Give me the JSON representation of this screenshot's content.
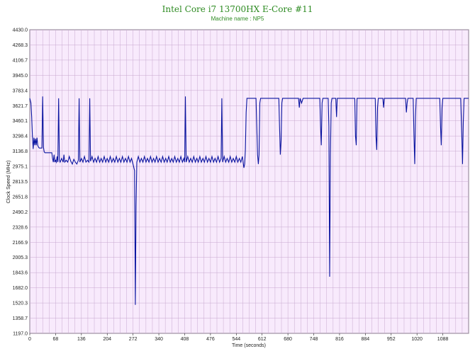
{
  "chart_data": {
    "type": "line",
    "title": "Intel Core i7 13700HX E-Core #11",
    "subtitle": "Machine name : NP5",
    "xlabel": "Time (seconds)",
    "ylabel": "Clock Speed (MHz)",
    "xlim": [
      0,
      1156
    ],
    "ylim": [
      1197.0,
      4430.0
    ],
    "x_ticks": [
      0,
      68,
      136,
      204,
      272,
      340,
      408,
      476,
      544,
      612,
      680,
      748,
      816,
      884,
      952,
      1020,
      1088
    ],
    "y_ticks": [
      "1197.0",
      "1358.7",
      "1520.3",
      "1682.0",
      "1843.6",
      "2005.3",
      "2166.9",
      "2328.6",
      "2490.2",
      "2651.8",
      "2813.5",
      "2975.1",
      "3136.8",
      "3298.4",
      "3460.1",
      "3621.7",
      "3783.4",
      "3945.0",
      "4106.7",
      "4268.3",
      "4430.0"
    ],
    "grid": true,
    "colors": {
      "line": "#0a14a0",
      "plot_bg": "#f8eafc",
      "grid": "#c7a8cf",
      "title": "#2e8b22"
    },
    "series": [
      {
        "values": [
          [
            0,
            3700
          ],
          [
            3,
            3650
          ],
          [
            5,
            3500
          ],
          [
            7,
            3300
          ],
          [
            9,
            3160
          ],
          [
            11,
            3280
          ],
          [
            13,
            3200
          ],
          [
            15,
            3270
          ],
          [
            17,
            3200
          ],
          [
            19,
            3280
          ],
          [
            21,
            3200
          ],
          [
            23,
            3180
          ],
          [
            25,
            3170
          ],
          [
            27,
            3170
          ],
          [
            30,
            3170
          ],
          [
            32,
            3170
          ],
          [
            34,
            3720
          ],
          [
            36,
            3180
          ],
          [
            38,
            3130
          ],
          [
            40,
            3120
          ],
          [
            45,
            3120
          ],
          [
            50,
            3120
          ],
          [
            55,
            3120
          ],
          [
            58,
            3120
          ],
          [
            60,
            3060
          ],
          [
            62,
            3020
          ],
          [
            64,
            3100
          ],
          [
            66,
            3020
          ],
          [
            68,
            3040
          ],
          [
            70,
            3020
          ],
          [
            72,
            3080
          ],
          [
            74,
            3020
          ],
          [
            76,
            3700
          ],
          [
            78,
            3040
          ],
          [
            80,
            3020
          ],
          [
            84,
            3060
          ],
          [
            88,
            3020
          ],
          [
            90,
            3100
          ],
          [
            92,
            3020
          ],
          [
            96,
            3040
          ],
          [
            100,
            3020
          ],
          [
            104,
            3080
          ],
          [
            108,
            3030
          ],
          [
            112,
            3000
          ],
          [
            116,
            3050
          ],
          [
            120,
            3020
          ],
          [
            124,
            3000
          ],
          [
            128,
            3040
          ],
          [
            130,
            3700
          ],
          [
            132,
            3020
          ],
          [
            136,
            3060
          ],
          [
            140,
            3020
          ],
          [
            144,
            3080
          ],
          [
            148,
            3020
          ],
          [
            152,
            3040
          ],
          [
            156,
            3020
          ],
          [
            158,
            3700
          ],
          [
            160,
            3030
          ],
          [
            164,
            3080
          ],
          [
            168,
            3020
          ],
          [
            172,
            3060
          ],
          [
            176,
            3020
          ],
          [
            180,
            3080
          ],
          [
            184,
            3020
          ],
          [
            188,
            3060
          ],
          [
            192,
            3020
          ],
          [
            196,
            3080
          ],
          [
            200,
            3020
          ],
          [
            204,
            3060
          ],
          [
            208,
            3020
          ],
          [
            212,
            3080
          ],
          [
            216,
            3020
          ],
          [
            220,
            3060
          ],
          [
            224,
            3020
          ],
          [
            228,
            3080
          ],
          [
            232,
            3020
          ],
          [
            236,
            3060
          ],
          [
            240,
            3020
          ],
          [
            244,
            3080
          ],
          [
            248,
            3020
          ],
          [
            252,
            3060
          ],
          [
            256,
            3020
          ],
          [
            260,
            3080
          ],
          [
            264,
            3020
          ],
          [
            268,
            3060
          ],
          [
            272,
            3000
          ],
          [
            276,
            2930
          ],
          [
            278,
            1500
          ],
          [
            280,
            2550
          ],
          [
            282,
            3020
          ],
          [
            286,
            3080
          ],
          [
            290,
            3020
          ],
          [
            294,
            3060
          ],
          [
            298,
            3020
          ],
          [
            302,
            3080
          ],
          [
            306,
            3020
          ],
          [
            310,
            3060
          ],
          [
            314,
            3020
          ],
          [
            318,
            3080
          ],
          [
            322,
            3020
          ],
          [
            326,
            3060
          ],
          [
            330,
            3020
          ],
          [
            334,
            3080
          ],
          [
            338,
            3020
          ],
          [
            342,
            3060
          ],
          [
            346,
            3020
          ],
          [
            350,
            3080
          ],
          [
            354,
            3020
          ],
          [
            358,
            3060
          ],
          [
            362,
            3020
          ],
          [
            366,
            3080
          ],
          [
            370,
            3020
          ],
          [
            374,
            3060
          ],
          [
            378,
            3020
          ],
          [
            382,
            3080
          ],
          [
            386,
            3020
          ],
          [
            390,
            3060
          ],
          [
            394,
            3020
          ],
          [
            398,
            3080
          ],
          [
            402,
            3020
          ],
          [
            406,
            3060
          ],
          [
            408,
            3020
          ],
          [
            410,
            3720
          ],
          [
            412,
            3020
          ],
          [
            416,
            3080
          ],
          [
            420,
            3020
          ],
          [
            424,
            3060
          ],
          [
            428,
            3020
          ],
          [
            432,
            3080
          ],
          [
            436,
            3020
          ],
          [
            440,
            3060
          ],
          [
            444,
            3020
          ],
          [
            448,
            3080
          ],
          [
            452,
            3020
          ],
          [
            456,
            3060
          ],
          [
            460,
            3020
          ],
          [
            464,
            3080
          ],
          [
            468,
            3020
          ],
          [
            472,
            3060
          ],
          [
            476,
            3020
          ],
          [
            480,
            3080
          ],
          [
            484,
            3020
          ],
          [
            488,
            3060
          ],
          [
            492,
            3020
          ],
          [
            496,
            3080
          ],
          [
            500,
            3020
          ],
          [
            504,
            3060
          ],
          [
            506,
            3700
          ],
          [
            508,
            3020
          ],
          [
            512,
            3080
          ],
          [
            516,
            3020
          ],
          [
            520,
            3060
          ],
          [
            524,
            3020
          ],
          [
            528,
            3080
          ],
          [
            532,
            3020
          ],
          [
            536,
            3060
          ],
          [
            540,
            3020
          ],
          [
            544,
            3080
          ],
          [
            548,
            3020
          ],
          [
            552,
            3060
          ],
          [
            556,
            3020
          ],
          [
            560,
            3080
          ],
          [
            564,
            2960
          ],
          [
            566,
            3000
          ],
          [
            568,
            3150
          ],
          [
            570,
            3550
          ],
          [
            572,
            3700
          ],
          [
            580,
            3700
          ],
          [
            590,
            3700
          ],
          [
            596,
            3700
          ],
          [
            598,
            3400
          ],
          [
            600,
            3100
          ],
          [
            602,
            3000
          ],
          [
            604,
            3100
          ],
          [
            606,
            3650
          ],
          [
            608,
            3700
          ],
          [
            620,
            3700
          ],
          [
            640,
            3700
          ],
          [
            650,
            3700
          ],
          [
            656,
            3700
          ],
          [
            658,
            3400
          ],
          [
            660,
            3100
          ],
          [
            662,
            3250
          ],
          [
            664,
            3650
          ],
          [
            666,
            3700
          ],
          [
            690,
            3700
          ],
          [
            700,
            3700
          ],
          [
            708,
            3700
          ],
          [
            710,
            3600
          ],
          [
            712,
            3700
          ],
          [
            716,
            3650
          ],
          [
            720,
            3700
          ],
          [
            740,
            3700
          ],
          [
            760,
            3700
          ],
          [
            764,
            3700
          ],
          [
            766,
            3400
          ],
          [
            768,
            3200
          ],
          [
            770,
            3650
          ],
          [
            772,
            3700
          ],
          [
            786,
            3700
          ],
          [
            788,
            3400
          ],
          [
            790,
            1800
          ],
          [
            792,
            3100
          ],
          [
            794,
            3650
          ],
          [
            796,
            3700
          ],
          [
            806,
            3700
          ],
          [
            808,
            3500
          ],
          [
            810,
            3700
          ],
          [
            830,
            3700
          ],
          [
            850,
            3700
          ],
          [
            856,
            3700
          ],
          [
            858,
            3300
          ],
          [
            860,
            3200
          ],
          [
            862,
            3700
          ],
          [
            890,
            3700
          ],
          [
            910,
            3700
          ],
          [
            912,
            3300
          ],
          [
            914,
            3150
          ],
          [
            916,
            3600
          ],
          [
            918,
            3700
          ],
          [
            930,
            3700
          ],
          [
            932,
            3600
          ],
          [
            934,
            3700
          ],
          [
            960,
            3700
          ],
          [
            980,
            3700
          ],
          [
            990,
            3700
          ],
          [
            992,
            3550
          ],
          [
            994,
            3650
          ],
          [
            996,
            3700
          ],
          [
            1010,
            3700
          ],
          [
            1012,
            3300
          ],
          [
            1014,
            3000
          ],
          [
            1016,
            3500
          ],
          [
            1018,
            3700
          ],
          [
            1040,
            3700
          ],
          [
            1060,
            3700
          ],
          [
            1080,
            3700
          ],
          [
            1082,
            3400
          ],
          [
            1084,
            3200
          ],
          [
            1086,
            3600
          ],
          [
            1088,
            3700
          ],
          [
            1110,
            3700
          ],
          [
            1130,
            3700
          ],
          [
            1135,
            3700
          ],
          [
            1138,
            3300
          ],
          [
            1140,
            3000
          ],
          [
            1142,
            3450
          ],
          [
            1144,
            3700
          ],
          [
            1156,
            3700
          ]
        ]
      }
    ]
  }
}
